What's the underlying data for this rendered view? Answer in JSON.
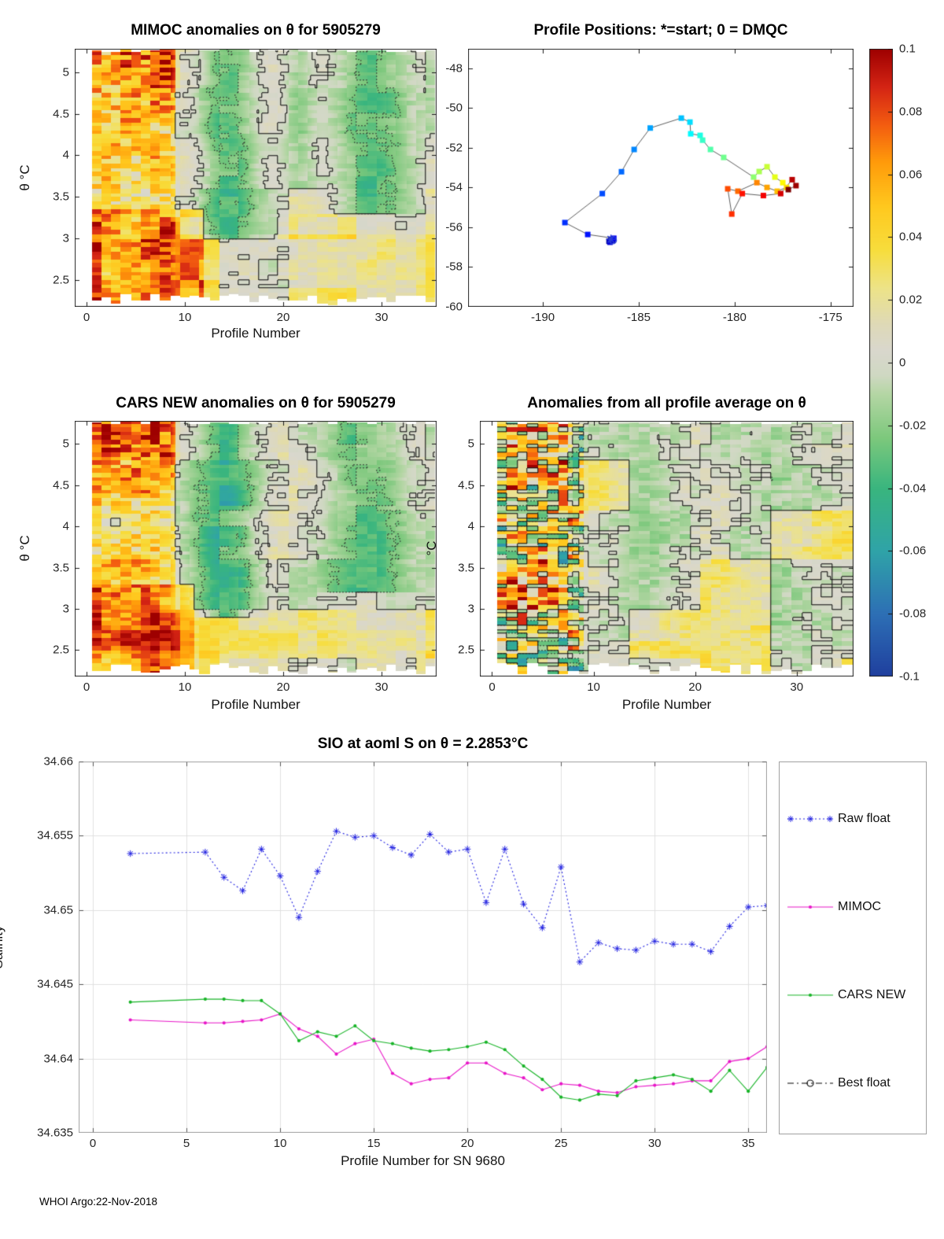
{
  "figure": {
    "footer": "WHOI Argo:22-Nov-2018"
  },
  "panels": {
    "mimoc": {
      "title": "MIMOC anomalies on θ  for 5905279",
      "xlabel": "Profile Number",
      "ylabel": "θ °C",
      "xticks": [
        "0",
        "10",
        "20",
        "30"
      ],
      "yticks": [
        "5",
        "4.5",
        "4",
        "3.5",
        "3",
        "2.5"
      ]
    },
    "map": {
      "title": "Profile Positions: *=start; 0 = DMQC",
      "xticks": [
        "-190",
        "-185",
        "-180",
        "-175"
      ],
      "yticks": [
        "-48",
        "-50",
        "-52",
        "-54",
        "-56",
        "-58",
        "-60"
      ]
    },
    "cars": {
      "title": "CARS NEW anomalies on θ for 5905279",
      "xlabel": "Profile Number",
      "ylabel": "θ °C",
      "xticks": [
        "0",
        "10",
        "20",
        "30"
      ],
      "yticks": [
        "5",
        "4.5",
        "4",
        "3.5",
        "3",
        "2.5"
      ]
    },
    "avg": {
      "title": "Anomalies from all profile average on θ",
      "xlabel": "Profile Number",
      "ylabel": "°C",
      "xticks": [
        "0",
        "10",
        "20",
        "30"
      ],
      "yticks": [
        "5",
        "4.5",
        "4",
        "3.5",
        "3",
        "2.5"
      ]
    },
    "colorbar": {
      "ticks": [
        "0.1",
        "0.08",
        "0.06",
        "0.04",
        "0.02",
        "0",
        "-0.02",
        "-0.04",
        "-0.06",
        "-0.08",
        "-0.1"
      ]
    },
    "sio": {
      "title": "SIO at aoml S on θ = 2.2853°C",
      "xlabel": "Profile Number for SN 9680",
      "ylabel": "Salinity",
      "xticks": [
        "0",
        "5",
        "10",
        "15",
        "20",
        "25",
        "30",
        "35"
      ],
      "yticks": [
        "34.66",
        "34.655",
        "34.65",
        "34.645",
        "34.64",
        "34.635"
      ]
    },
    "legend": {
      "entries": [
        {
          "label": "Raw float",
          "color": "#2020e0",
          "line": "dotted",
          "marker": "asterisk"
        },
        {
          "label": "MIMOC",
          "color": "#e816c8",
          "line": "solid",
          "marker": "dot"
        },
        {
          "label": "CARS NEW",
          "color": "#18b428",
          "line": "solid",
          "marker": "dot"
        },
        {
          "label": "Best float",
          "color": "#000000",
          "line": "dashdot",
          "marker": "circle"
        }
      ]
    }
  },
  "chart_data": [
    {
      "id": "mimoc_heatmap",
      "type": "heatmap",
      "title": "MIMOC anomalies on θ  for 5905279",
      "xlabel": "Profile Number",
      "ylabel": "θ °C",
      "xlim": [
        -1.2,
        35.6
      ],
      "ylim": [
        2.18,
        5.28
      ],
      "zlim": [
        -0.1,
        0.1
      ],
      "profiles": [
        1,
        35
      ],
      "description": "Salinity anomaly vs MIMOC climatology on potential temperature surfaces. Strong warm (orange/red, up to +0.1) anomalies for profiles 1-9 at all θ, darkest red above θ≈4.5; orange band θ<3.3 for profiles 1-12; green (−0.02 to −0.06) column bands near profiles 12-18 and 26-33 above θ≈3; near-zero gray / pale-yellow field elsewhere with black zero contours and dotted negative contours.",
      "gen": {
        "seed": 7,
        "base": 0.006,
        "a1": 0.012,
        "a2": 0.018,
        "a3": 0.024,
        "warm": {
          "cols": 9,
          "amp": 0.075,
          "top": 0.02
        },
        "low": {
          "th": 3.35,
          "cols": 12,
          "amp": 0.05
        },
        "bands": [
          {
            "c": 14.5,
            "w": 2.2,
            "a": 0.055,
            "thMin": 3.0
          },
          {
            "c": 29,
            "w": 3.0,
            "a": 0.05,
            "thMin": 3.3
          },
          {
            "c": 21.5,
            "w": 1.3,
            "a": 0.03,
            "thMin": 3.6
          }
        ],
        "warmFloor": {
          "th": 3.05,
          "amp": 0.018
        }
      }
    },
    {
      "id": "profile_map",
      "type": "scatter",
      "title": "Profile Positions: *=start; 0 = DMQC",
      "xlim": [
        -193.9,
        -173.8
      ],
      "ylim": [
        -60,
        -47.01
      ],
      "marker": "filled squares colored by profile number (jet colormap: blue = first, red = last), connected by a thin black track; * = start position; 0 = DMQC position",
      "lon": [
        -186.45,
        -186.55,
        -186.35,
        -186.5,
        -186.3,
        -187.66,
        -188.85,
        -186.9,
        -185.9,
        -185.24,
        -184.4,
        -182.78,
        -182.33,
        -182.29,
        -181.8,
        -181.67,
        -181.26,
        -180.57,
        -179.01,
        -178.72,
        -178.31,
        -177.9,
        -177.49,
        -177.29,
        -177.78,
        -178.31,
        -178.84,
        -179.83,
        -180.36,
        -180.15,
        -179.6,
        -178.5,
        -177.6,
        -177.0,
        -176.8,
        -177.2
      ],
      "lat": [
        -56.6,
        -56.7,
        -56.65,
        -56.75,
        -56.55,
        -56.36,
        -55.76,
        -54.3,
        -53.2,
        -52.08,
        -51.0,
        -50.5,
        -50.7,
        -51.29,
        -51.37,
        -51.61,
        -52.08,
        -52.48,
        -53.47,
        -53.19,
        -52.95,
        -53.47,
        -53.75,
        -53.99,
        -54.18,
        -53.99,
        -53.75,
        -54.18,
        -54.06,
        -55.33,
        -54.3,
        -54.4,
        -54.3,
        -53.6,
        -53.9,
        -54.1
      ]
    },
    {
      "id": "cars_heatmap",
      "type": "heatmap",
      "title": "CARS NEW anomalies on θ for 5905279",
      "xlabel": "Profile Number",
      "ylabel": "θ °C",
      "xlim": [
        -1.2,
        35.6
      ],
      "ylim": [
        2.18,
        5.28
      ],
      "zlim": [
        -0.1,
        0.1
      ],
      "profiles": [
        1,
        35
      ],
      "description": "Salinity anomaly vs CARS NEW climatology; same structure as MIMOC panel: warm red/orange block profiles 1-9, orange bottom-left band, strong green/teal band near profiles 13-16 (θ 3-4.6, locally −0.06 to −0.08) and broad green band profiles 25-32, pale yellow/gray elsewhere.",
      "gen": {
        "seed": 13,
        "base": 0.006,
        "a1": 0.012,
        "a2": 0.018,
        "a3": 0.024,
        "warm": {
          "cols": 9,
          "amp": 0.07,
          "top": 0.02
        },
        "low": {
          "th": 3.3,
          "cols": 11,
          "amp": 0.05
        },
        "bands": [
          {
            "c": 14,
            "w": 2.4,
            "a": 0.065,
            "thMin": 2.9
          },
          {
            "c": 28.5,
            "w": 3.2,
            "a": 0.05,
            "thMin": 3.2
          }
        ],
        "warmFloor": {
          "th": 3.0,
          "amp": 0.018
        }
      }
    },
    {
      "id": "avg_heatmap",
      "type": "heatmap",
      "title": "Anomalies from all profile average on θ",
      "xlabel": "Profile Number",
      "ylabel": "°C",
      "xlim": [
        -1.2,
        35.6
      ],
      "ylim": [
        2.18,
        5.28
      ],
      "zlim": [
        -0.1,
        0.1
      ],
      "profiles": [
        1,
        35
      ],
      "description": "Salinity anomaly from the all-profile average; mostly near-zero gray with scattered pale-yellow patches; profiles 1-9 show strong mixed positive/negative speckle (red and blue/teal streaks); dense black solid and dotted contour lines throughout.",
      "gen": {
        "seed": 21,
        "base": 0.002,
        "a1": 0.016,
        "a2": 0.018,
        "a3": 0.014,
        "warm": {
          "cols": 8,
          "amp": 0.028,
          "top": 0.012
        },
        "mix": {
          "cols": 9,
          "amp": 0.09,
          "amp2": 0.05
        },
        "bands": [
          {
            "c": 15,
            "w": 2.2,
            "a": 0.02,
            "thMin": 2.6
          },
          {
            "c": 27,
            "w": 2.5,
            "a": 0.015,
            "thMin": 2.8
          }
        ],
        "spots": 0.02
      }
    },
    {
      "id": "colorbar",
      "type": "colorbar",
      "zlim": [
        -0.1,
        0.1
      ],
      "ticks": [
        0.1,
        0.08,
        0.06,
        0.04,
        0.02,
        0,
        -0.02,
        -0.04,
        -0.06,
        -0.08,
        -0.1
      ],
      "stops": [
        [
          0.0,
          "#1f3f9e"
        ],
        [
          0.1,
          "#2d6fb5"
        ],
        [
          0.2,
          "#2fa3a8"
        ],
        [
          0.3,
          "#39b57e"
        ],
        [
          0.38,
          "#7cc87c"
        ],
        [
          0.45,
          "#b4d6a4"
        ],
        [
          0.48,
          "#cfd8c2"
        ],
        [
          0.52,
          "#d9d7cd"
        ],
        [
          0.56,
          "#ded9b8"
        ],
        [
          0.62,
          "#ede387"
        ],
        [
          0.68,
          "#f7dd3c"
        ],
        [
          0.75,
          "#ffc81e"
        ],
        [
          0.82,
          "#ff9b0a"
        ],
        [
          0.88,
          "#f35c10"
        ],
        [
          0.94,
          "#d42414"
        ],
        [
          1.0,
          "#9e0000"
        ]
      ]
    },
    {
      "id": "sio_salinity",
      "type": "line",
      "title": "SIO at aoml S on θ = 2.2853°C",
      "xlabel": "Profile Number for SN 9680",
      "ylabel": "Salinity",
      "xlim": [
        -0.76,
        36
      ],
      "ylim": [
        34.635,
        34.66
      ],
      "grid": true,
      "legend_position": "right",
      "x": [
        2,
        6,
        7,
        8,
        9,
        10,
        11,
        12,
        13,
        14,
        15,
        16,
        17,
        18,
        19,
        20,
        21,
        22,
        23,
        24,
        25,
        26,
        27,
        28,
        29,
        30,
        31,
        32,
        33,
        34,
        35,
        36
      ],
      "series": [
        {
          "name": "Raw float",
          "color": "#2020e0",
          "line": "dotted",
          "marker": "asterisk",
          "values": [
            34.6538,
            34.6539,
            34.6522,
            34.6513,
            34.6541,
            34.6523,
            34.6495,
            34.6526,
            34.6553,
            34.6549,
            34.655,
            34.6542,
            34.6537,
            34.6551,
            34.6539,
            34.6541,
            34.6505,
            34.6541,
            34.6504,
            34.6488,
            34.6529,
            34.6465,
            34.6478,
            34.6474,
            34.6473,
            34.6479,
            34.6477,
            34.6477,
            34.6472,
            34.6489,
            34.6502,
            34.6503
          ]
        },
        {
          "name": "MIMOC",
          "color": "#e816c8",
          "line": "solid",
          "marker": "dot",
          "values": [
            34.6426,
            34.6424,
            34.6424,
            34.6425,
            34.6426,
            34.643,
            34.642,
            34.6415,
            34.6403,
            34.641,
            34.6413,
            34.639,
            34.6383,
            34.6386,
            34.6387,
            34.6397,
            34.6397,
            34.639,
            34.6387,
            34.6379,
            34.6383,
            34.6382,
            34.6378,
            34.6377,
            34.6381,
            34.6382,
            34.6383,
            34.6385,
            34.6385,
            34.6398,
            34.64,
            34.6408
          ]
        },
        {
          "name": "CARS NEW",
          "color": "#18b428",
          "line": "solid",
          "marker": "dot",
          "values": [
            34.6438,
            34.644,
            34.644,
            34.6439,
            34.6439,
            34.643,
            34.6412,
            34.6418,
            34.6415,
            34.6422,
            34.6412,
            34.641,
            34.6407,
            34.6405,
            34.6406,
            34.6408,
            34.6411,
            34.6406,
            34.6395,
            34.6386,
            34.6374,
            34.6372,
            34.6376,
            34.6375,
            34.6385,
            34.6387,
            34.6389,
            34.6386,
            34.6378,
            34.6392,
            34.6378,
            34.6394
          ]
        },
        {
          "name": "Best float",
          "color": "#000000",
          "line": "dashdot",
          "marker": "circle",
          "values": []
        }
      ]
    }
  ]
}
